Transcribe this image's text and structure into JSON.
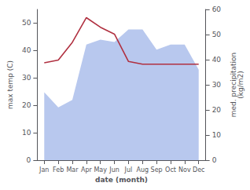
{
  "chart_data": {
    "type": "line",
    "xlabel": "date (month)",
    "ylabel": "max temp (C)",
    "y2label": "med. precipitation\n(kg/m2)",
    "categories": [
      "Jan",
      "Feb",
      "Mar",
      "Apr",
      "May",
      "Jun",
      "Jul",
      "Aug",
      "Sep",
      "Oct",
      "Nov",
      "Dec"
    ],
    "series": [
      {
        "type": "area",
        "axis": "y2",
        "color": "#b8c8ee",
        "values": [
          27,
          21,
          24,
          46,
          48,
          47,
          52,
          52,
          44,
          46,
          46,
          36
        ]
      },
      {
        "type": "line",
        "color": "#b03040",
        "values": [
          35.5,
          36.5,
          43.0,
          52.0,
          48.5,
          46.0,
          36.0,
          35.0,
          35.0,
          35.0,
          35.0,
          35.0
        ]
      }
    ],
    "ylim": [
      0,
      55
    ],
    "yticks": [
      0,
      10,
      20,
      30,
      40,
      50
    ],
    "y2lim": [
      0,
      60
    ],
    "y2ticks": [
      0,
      10,
      20,
      30,
      40,
      50,
      60
    ],
    "grid": false
  }
}
